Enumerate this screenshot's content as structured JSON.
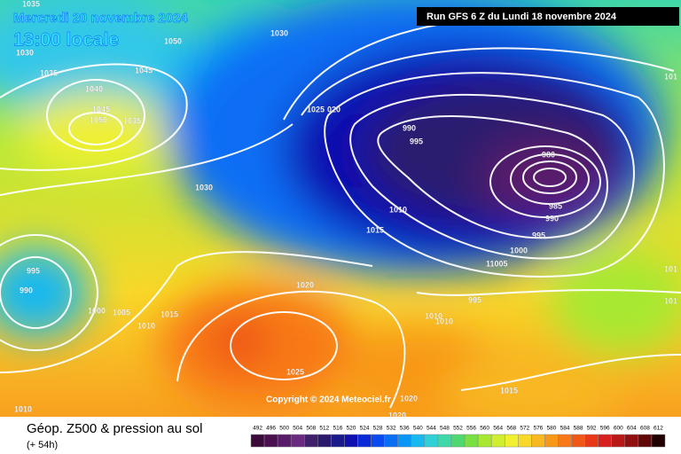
{
  "header": {
    "date": "Mercredi 20 novembre 2024",
    "time": "13:00 locale",
    "run": "Run GFS 6 Z du Lundi 18 novembre 2024"
  },
  "copyright": "Copyright © 2024 Meteociel.fr",
  "footer": {
    "title": "Géop. Z500 & pression au sol",
    "lead": "(+ 54h)"
  },
  "isobar_labels": [
    "1035",
    "1030",
    "1050",
    "1030",
    "1035",
    "1045",
    "1040",
    "1045",
    "1050",
    "1035",
    "1025",
    "020",
    "990",
    "995",
    "980",
    "1030",
    "985",
    "990",
    "1010",
    "1015",
    "995",
    "1000",
    "11005",
    "995",
    "990",
    "1020",
    "1000",
    "1005",
    "1015",
    "1010",
    "995",
    "1010",
    "1010",
    "1025",
    "1015",
    "1020",
    "1020",
    "1010",
    "101",
    "101",
    "101"
  ],
  "colorbar": {
    "values": [
      492,
      496,
      500,
      504,
      508,
      512,
      516,
      520,
      524,
      528,
      532,
      536,
      540,
      544,
      548,
      552,
      556,
      560,
      564,
      568,
      572,
      576,
      580,
      584,
      588,
      592,
      596,
      600,
      604,
      608,
      612
    ],
    "colors": [
      "#3a0a3a",
      "#4a1050",
      "#5a1a6a",
      "#6a2a80",
      "#40206a",
      "#2a1a6e",
      "#1a1a8a",
      "#1010b0",
      "#0a2ad8",
      "#0a4aee",
      "#0a6ef5",
      "#0a96f5",
      "#18b8f0",
      "#30d0d8",
      "#40d8a8",
      "#50d870",
      "#78e040",
      "#a8e830",
      "#d0ee30",
      "#f0f030",
      "#f8d828",
      "#f8b820",
      "#f89818",
      "#f87818",
      "#f05818",
      "#e83818",
      "#d82020",
      "#b81818",
      "#901010",
      "#600808",
      "#200000"
    ]
  }
}
